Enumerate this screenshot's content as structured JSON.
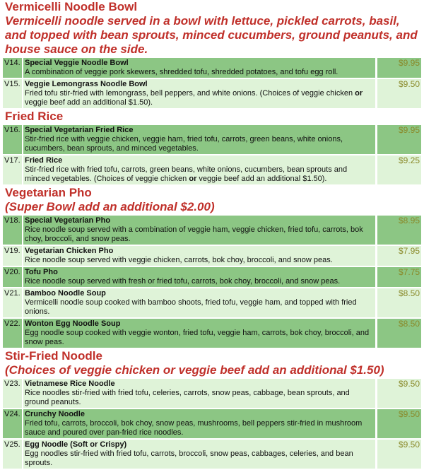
{
  "colors": {
    "heading": "#c0302a",
    "row_dark": "#8cc684",
    "row_light": "#dff3d8",
    "price": "#8a8a2a"
  },
  "sections": [
    {
      "heading": "Vermicelli Noodle Bowl",
      "subtitle": "Vermicelli noodle served in a bowl with lettuce, pickled carrots, basil, and topped with bean sprouts, minced cucumbers, ground peanuts, and house sauce on the side.",
      "items": [
        {
          "code": "V14.",
          "name": "Special Veggie Noodle Bowl",
          "desc": [
            {
              "t": "A combination of veggie pork skewers, shredded tofu, shredded potatoes, and tofu egg roll."
            }
          ],
          "price": "$9.95",
          "shade": "dark"
        },
        {
          "code": "V15.",
          "name": "Veggie Lemongrass Noodle Bowl",
          "desc": [
            {
              "t": "Fried tofu stir-fried with lemongrass, bell peppers, and white onions. (Choices of veggie chicken "
            },
            {
              "t": "or",
              "b": true
            },
            {
              "t": " veggie beef add an additional $1.50)."
            }
          ],
          "price": "$9.50",
          "shade": "light"
        }
      ]
    },
    {
      "heading": "Fried Rice",
      "subtitle": "",
      "items": [
        {
          "code": "V16.",
          "name": "Special Vegetarian Fried Rice",
          "desc": [
            {
              "t": "Stir-fried rice with veggie chicken, veggie ham, fried tofu, carrots, green beans, white onions, cucumbers, bean sprouts, and minced vegetables."
            }
          ],
          "price": "$9.95",
          "shade": "dark"
        },
        {
          "code": "V17.",
          "name": "Fried Rice",
          "desc": [
            {
              "t": "Stir-fried rice with fried tofu, carrots, green beans, white onions, cucumbers, bean sprouts and minced vegetables. (Choices of veggie chicken "
            },
            {
              "t": "or",
              "b": true
            },
            {
              "t": " veggie beef add an additional $1.50)."
            }
          ],
          "price": "$9.25",
          "shade": "light"
        }
      ]
    },
    {
      "heading": "Vegetarian Pho",
      "subtitle": "(Super Bowl add an additional $2.00)",
      "items": [
        {
          "code": "V18.",
          "name": "Special Vegetarian Pho",
          "desc": [
            {
              "t": "Rice noodle soup served with a combination of veggie ham, veggie chicken, fried tofu, carrots, bok choy, broccoli, and snow peas."
            }
          ],
          "price": "$8.95",
          "shade": "dark"
        },
        {
          "code": "V19.",
          "name": "Vegetarian Chicken Pho",
          "desc": [
            {
              "t": "Rice noodle soup served with veggie chicken, carrots, bok choy, broccoli, and snow peas."
            }
          ],
          "price": "$7.95",
          "shade": "light"
        },
        {
          "code": "V20.",
          "name": "Tofu Pho",
          "desc": [
            {
              "t": "Rice noodle soup served with fresh or fried tofu, carrots, bok choy, broccoli, and snow peas."
            }
          ],
          "price": "$7.75",
          "shade": "dark"
        },
        {
          "code": "V21.",
          "name": "Bamboo Noodle Soup",
          "desc": [
            {
              "t": "Vermicelli noodle soup cooked with bamboo shoots, fried tofu, veggie ham, and topped with fried onions."
            }
          ],
          "price": "$8.50",
          "shade": "light"
        },
        {
          "code": "V22.",
          "name": "Wonton Egg Noodle Soup",
          "desc": [
            {
              "t": "Egg noodle soup cooked with veggie wonton, fried tofu, veggie ham, carrots, bok choy, broccoli, and snow peas."
            }
          ],
          "price": "$8.50",
          "shade": "dark"
        }
      ]
    },
    {
      "heading": "Stir-Fried Noodle",
      "subtitle": "(Choices of veggie chicken or veggie beef add an additional $1.50)",
      "items": [
        {
          "code": "V23.",
          "name": "Vietnamese Rice Noodle",
          "desc": [
            {
              "t": "Rice noodles stir-fried with fried tofu, celeries, carrots, snow peas, cabbage, bean sprouts, and ground peanuts."
            }
          ],
          "price": "$9.50",
          "shade": "light"
        },
        {
          "code": "V24.",
          "name": "Crunchy Noodle",
          "desc": [
            {
              "t": "Fried tofu, carrots, broccoli, bok choy, snow peas, mushrooms, bell peppers stir-fried in mushroom sauce and poured over pan-fried rice noodles."
            }
          ],
          "price": "$9.50",
          "shade": "dark"
        },
        {
          "code": "V25.",
          "name": "Egg Noodle (Soft or Crispy)",
          "desc": [
            {
              "t": "Egg noodles stir-fried with fried tofu, carrots, broccoli, snow peas, cabbages, celeries, and bean sprouts."
            }
          ],
          "price": "$9.50",
          "shade": "light"
        }
      ]
    }
  ]
}
